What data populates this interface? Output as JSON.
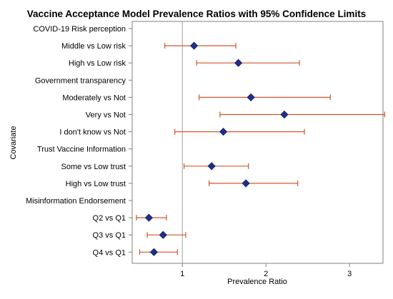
{
  "chart_data": {
    "type": "forest",
    "title": "Vaccine Acceptance Model Prevalence Ratios with 95% Confidence Limits",
    "xlabel": "Prevalence Ratio",
    "ylabel": "Covariate",
    "xlim": [
      0.4,
      3.4
    ],
    "xticks": [
      1,
      2,
      3
    ],
    "reference_line": 1,
    "grid": false,
    "colors": {
      "point": "#1f2f8a",
      "ci": "#d2562c",
      "reference": "#a0a0a0",
      "frame": "#808080"
    },
    "rows": [
      {
        "label": "COVID-19 Risk perception"
      },
      {
        "label": "Middle vs Low risk",
        "pr": 1.14,
        "lcl": 0.79,
        "ucl": 1.64
      },
      {
        "label": "High vs Low risk",
        "pr": 1.67,
        "lcl": 1.17,
        "ucl": 2.4
      },
      {
        "label": "Government transparency"
      },
      {
        "label": "Moderately vs Not",
        "pr": 1.82,
        "lcl": 1.2,
        "ucl": 2.77
      },
      {
        "label": "Very vs Not",
        "pr": 2.22,
        "lcl": 1.45,
        "ucl": 3.42
      },
      {
        "label": "I don't know vs Not",
        "pr": 1.49,
        "lcl": 0.91,
        "ucl": 2.46
      },
      {
        "label": "Trust Vaccine Information"
      },
      {
        "label": "Some vs Low trust",
        "pr": 1.35,
        "lcl": 1.02,
        "ucl": 1.79
      },
      {
        "label": "High vs Low trust",
        "pr": 1.76,
        "lcl": 1.32,
        "ucl": 2.38
      },
      {
        "label": "Misinformation Endorsement"
      },
      {
        "label": "Q2 vs Q1",
        "pr": 0.6,
        "lcl": 0.45,
        "ucl": 0.81
      },
      {
        "label": "Q3 vs Q1",
        "pr": 0.77,
        "lcl": 0.58,
        "ucl": 1.04
      },
      {
        "label": "Q4 vs Q1",
        "pr": 0.66,
        "lcl": 0.49,
        "ucl": 0.94
      }
    ]
  }
}
